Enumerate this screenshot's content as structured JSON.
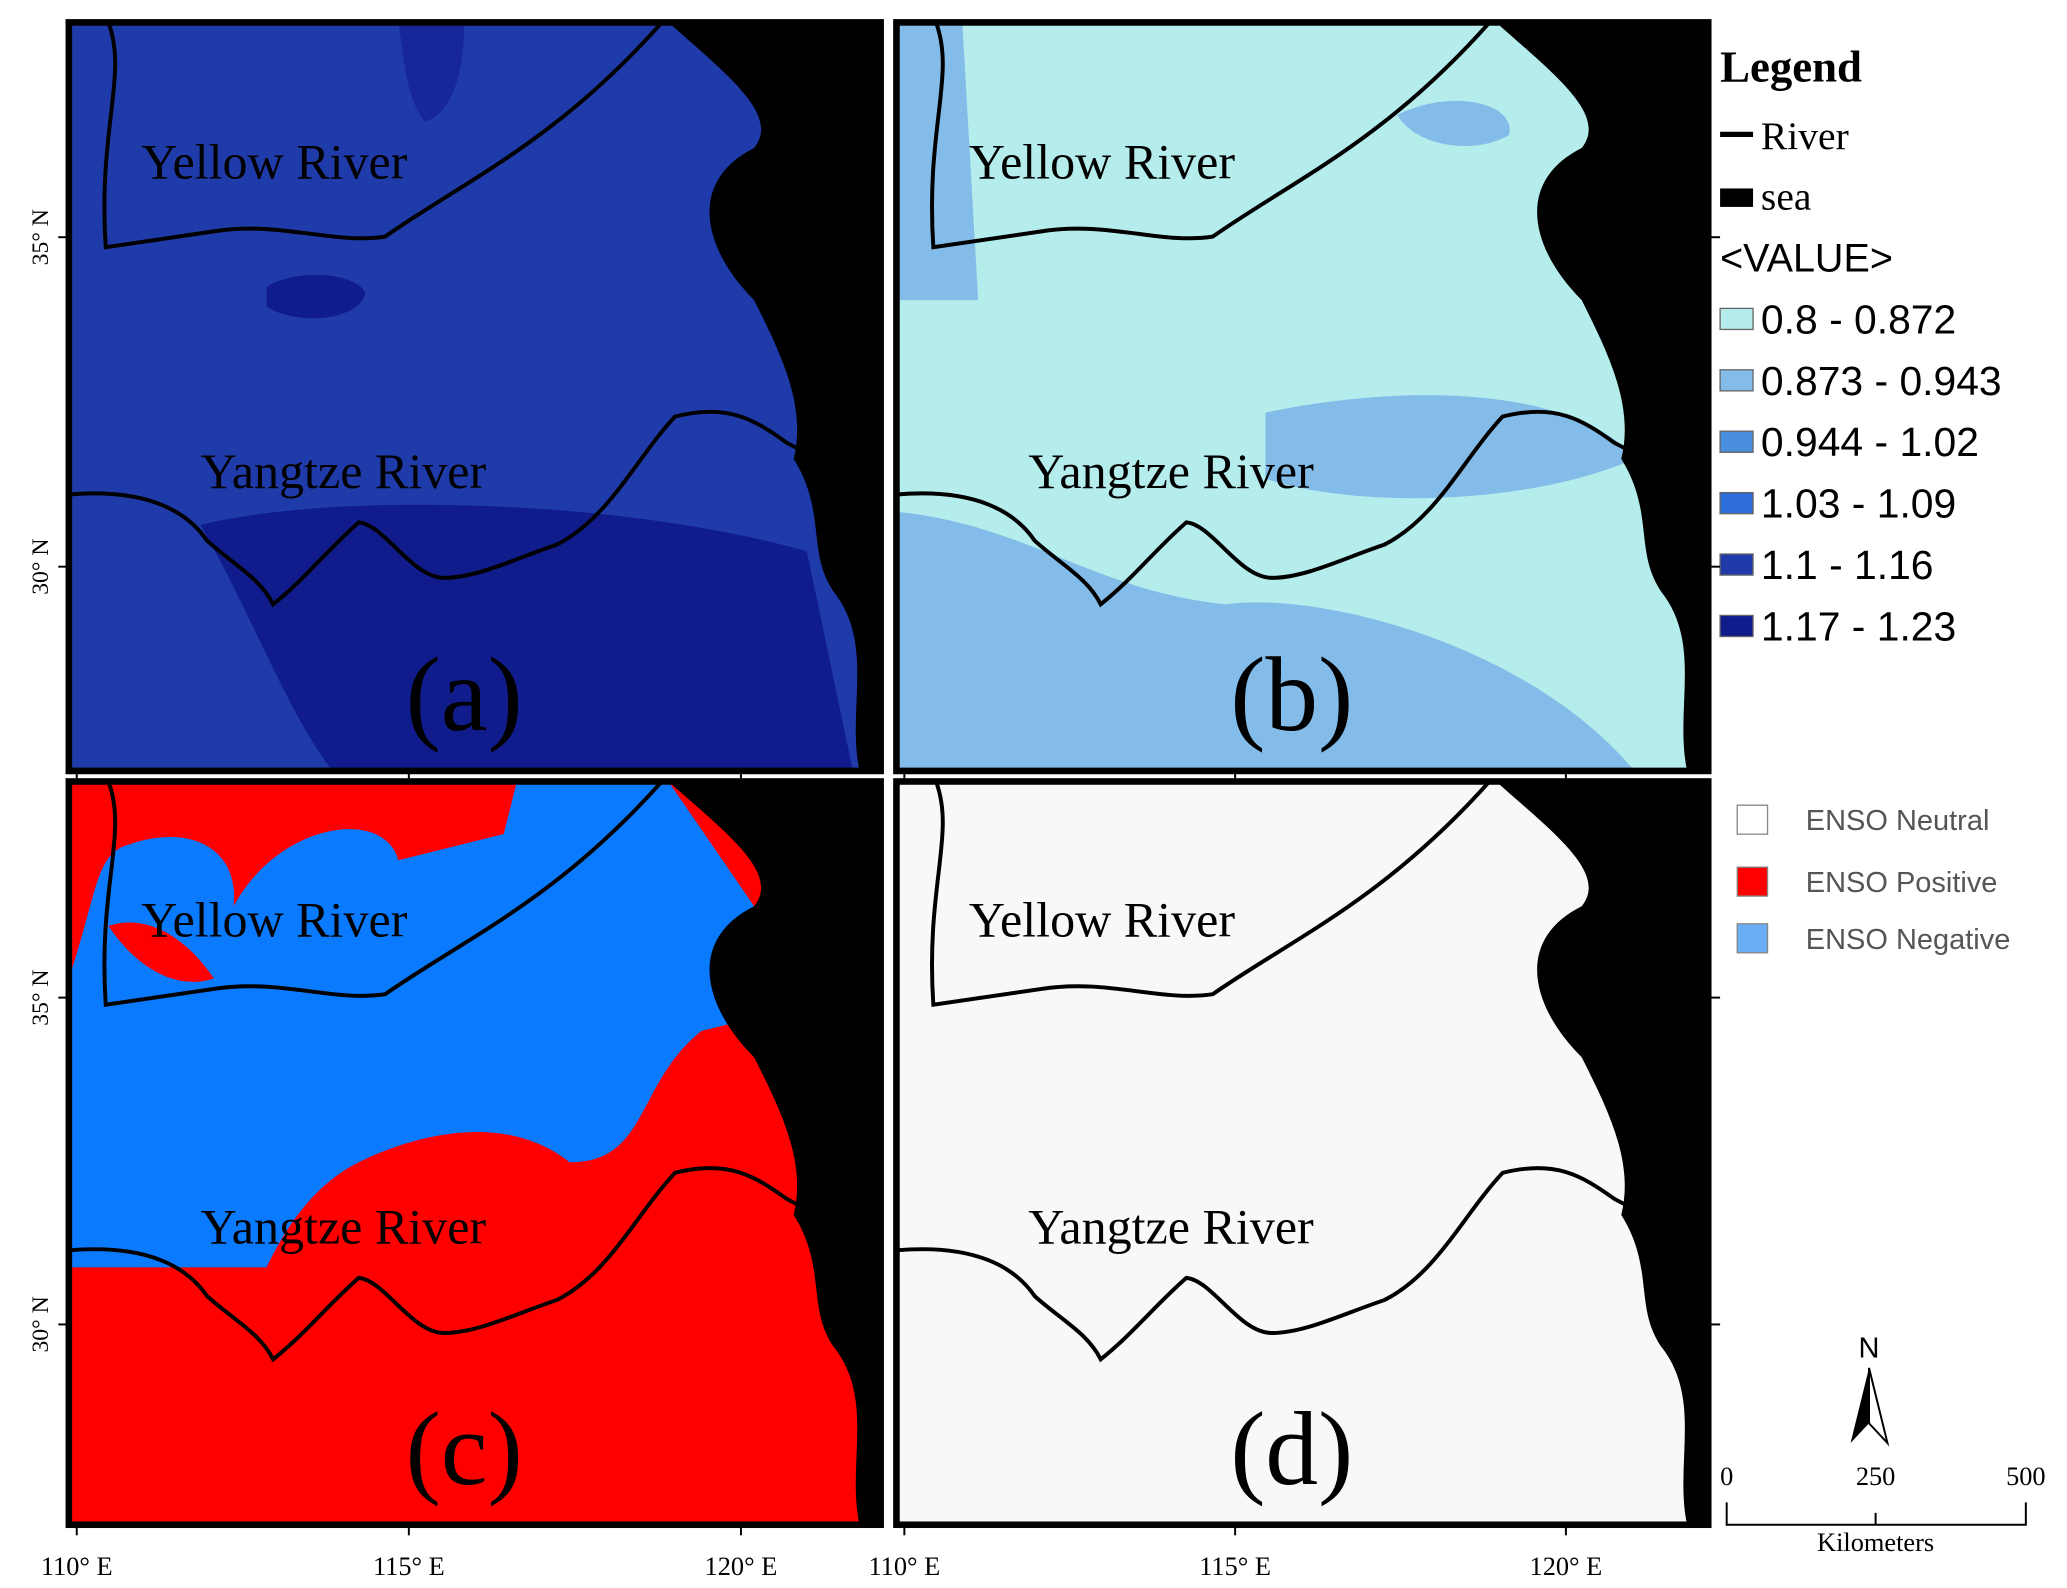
{
  "panels": [
    {
      "label": "(a)",
      "river_labels": [
        "Yellow River",
        "Yangtze River"
      ]
    },
    {
      "label": "(b)",
      "river_labels": [
        "Yellow River",
        "Yangtze River"
      ]
    },
    {
      "label": "(c)",
      "river_labels": [
        "Yellow River",
        "Yangtze River"
      ]
    },
    {
      "label": "(d)",
      "river_labels": [
        "Yellow River",
        "Yangtze River"
      ]
    }
  ],
  "latitude_labels": [
    "35° N",
    "30° N"
  ],
  "longitude_labels": [
    "110° E",
    "115° E",
    "120° E"
  ],
  "legend": {
    "title": "Legend",
    "items": [
      "River",
      "sea"
    ],
    "value_header": "<VALUE>",
    "classes": [
      {
        "label": "0.8 - 0.872",
        "color": "#b5ecec"
      },
      {
        "label": "0.873 - 0.943",
        "color": "#84bce9"
      },
      {
        "label": "0.944 - 1.02",
        "color": "#4a8fdd"
      },
      {
        "label": "1.03 - 1.09",
        "color": "#2e6ed8"
      },
      {
        "label": "1.1 - 1.16",
        "color": "#1f3ba9"
      },
      {
        "label": "1.17 - 1.23",
        "color": "#101c8c"
      }
    ]
  },
  "enso_legend": [
    {
      "label": "ENSO Neutral",
      "color": "#ffffff"
    },
    {
      "label": "ENSO Positive",
      "color": "#ff0000"
    },
    {
      "label": "ENSO Negative",
      "color": "#6aaef7"
    }
  ],
  "scale_bar": {
    "north": "N",
    "ticks": [
      "0",
      "250",
      "500"
    ],
    "unit": "Kilometers"
  }
}
